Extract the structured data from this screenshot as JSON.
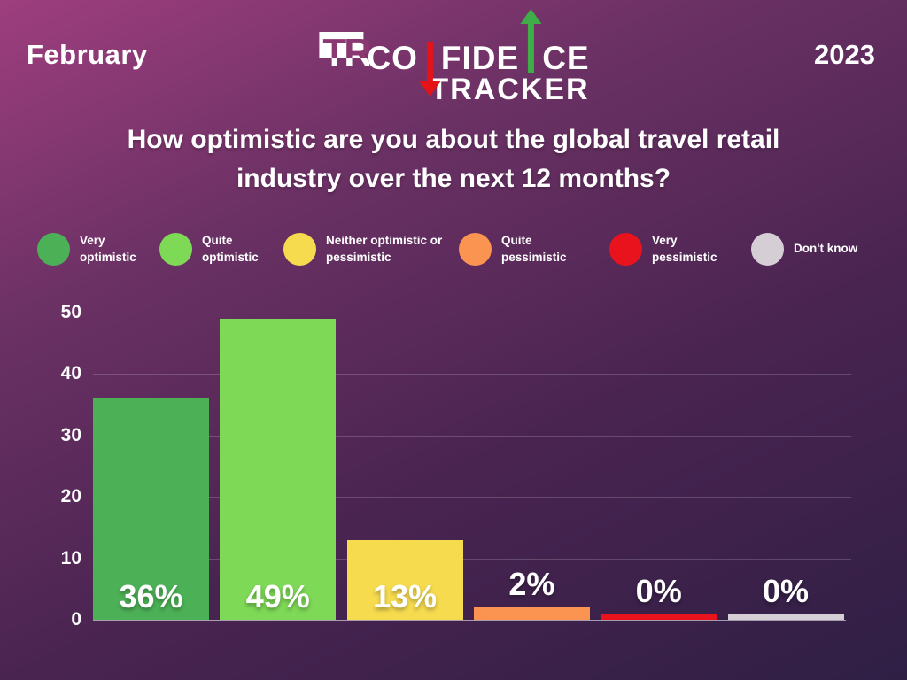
{
  "header": {
    "month": "February",
    "year": "2023"
  },
  "logo": {
    "mark": "TR",
    "line1_pre": "CO",
    "line1_mid": "FIDE",
    "line1_post": "CE",
    "line2": "TRACKER"
  },
  "title": "How optimistic are you about the global travel retail industry over the next 12 months?",
  "chart_data": {
    "type": "bar",
    "title": "How optimistic are you about the global travel retail industry over the next 12 months?",
    "categories": [
      "Very optimistic",
      "Quite optimistic",
      "Neither optimistic or pessimistic",
      "Quite pessimistic",
      "Very pessimistic",
      "Don't know"
    ],
    "values": [
      36,
      49,
      13,
      2,
      0,
      0
    ],
    "value_labels": [
      "36%",
      "49%",
      "13%",
      "2%",
      "0%",
      "0%"
    ],
    "colors": [
      "#4cb156",
      "#7ed957",
      "#f6db4f",
      "#fb9450",
      "#e8131c",
      "#d5cfd5"
    ],
    "yticks": [
      0,
      10,
      20,
      30,
      40,
      50
    ],
    "ylim": [
      0,
      50
    ],
    "grid": true,
    "legend_position": "top",
    "accent_colors": {
      "logo_arrow_up": "#3fae49",
      "logo_arrow_down": "#e41317",
      "background_top": "#9e3e7e",
      "background_bottom": "#2f1f45"
    }
  }
}
